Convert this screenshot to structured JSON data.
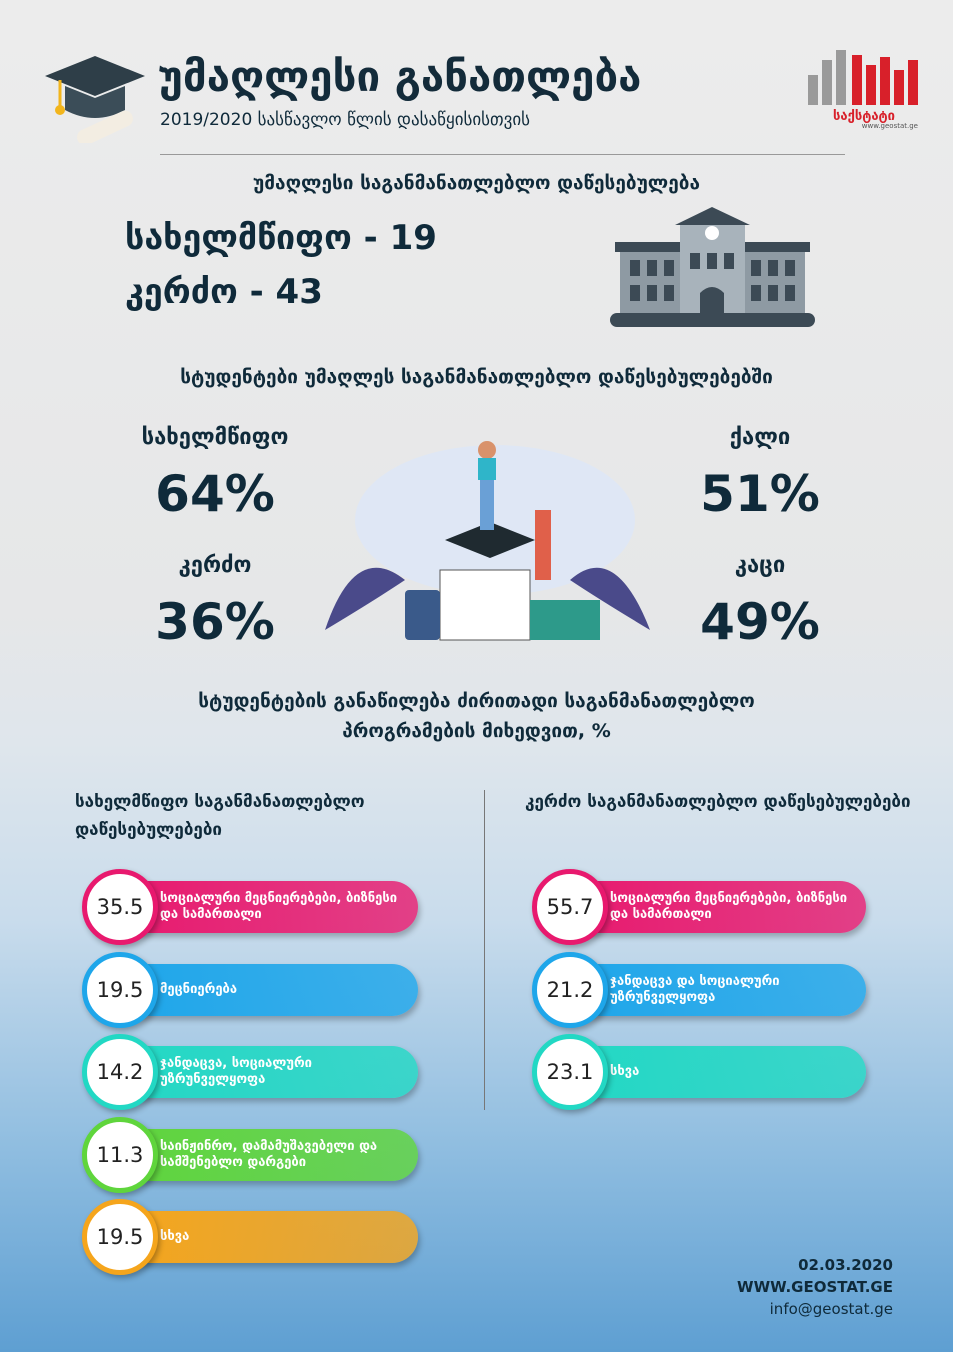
{
  "header": {
    "title": "უმაღლესი განათლება",
    "subtitle": "2019/2020 სასწავლო წლის დასაწყისისთვის",
    "logo_text": "საქსტატი",
    "logo_url": "www.geostat.ge"
  },
  "institutions": {
    "heading": "უმაღლესი საგანმანათლებლო დაწესებულება",
    "state": "სახელმწიფო - 19",
    "private": "კერძო - 43"
  },
  "students": {
    "heading": "სტუდენტები უმაღლეს საგანმანათლებლო დაწესებულებებში",
    "items": [
      {
        "label": "სახელმწიფო",
        "value": "64%"
      },
      {
        "label": "კერძო",
        "value": "36%"
      },
      {
        "label": "ქალი",
        "value": "51%"
      },
      {
        "label": "კაცი",
        "value": "49%"
      }
    ]
  },
  "programs": {
    "heading": "სტუდენტების განაწილება ძირითადი საგანმანათლებლო პროგრამების მიხედვით, %",
    "groups": [
      {
        "title": "სახელმწიფო საგანმანათლებლო დაწესებულებები",
        "items": [
          {
            "value": "35.5",
            "label": "სოციალური მეცნიერებები, ბიზნესი და სამართალი",
            "color": "#e8196e"
          },
          {
            "value": "19.5",
            "label": "მეცნიერება",
            "color": "#1ea6ea"
          },
          {
            "value": "14.2",
            "label": "ჯანდაცვა, სოციალური უზრუნველყოფა",
            "color": "#22d8c4"
          },
          {
            "value": "11.3",
            "label": "საინჟინრო, დამამუშავებელი და სამშენებლო დარგები",
            "color": "#5fd53c"
          },
          {
            "value": "19.5",
            "label": "სხვა",
            "color": "#f5a51c"
          }
        ]
      },
      {
        "title": "კერძო საგანმანათლებლო დაწესებულებები",
        "items": [
          {
            "value": "55.7",
            "label": "სოციალური მეცნიერებები, ბიზნესი და სამართალი",
            "color": "#e8196e"
          },
          {
            "value": "21.2",
            "label": "ჯანდაცვა და სოციალური უზრუნველყოფა",
            "color": "#1ea6ea"
          },
          {
            "value": "23.1",
            "label": "სხვა",
            "color": "#22d8c4"
          }
        ]
      }
    ]
  },
  "footer": {
    "date": "02.03.2020",
    "web": "WWW.GEOSTAT.GE",
    "email": "info@geostat.ge"
  }
}
